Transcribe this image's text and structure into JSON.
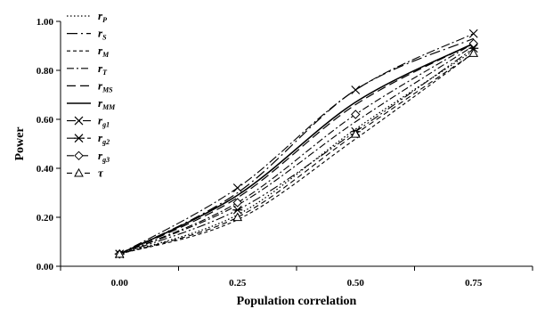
{
  "chart_data": {
    "type": "line",
    "title": "",
    "xlabel": "Population correlation",
    "ylabel": "Power",
    "x": [
      0.0,
      0.25,
      0.5,
      0.75
    ],
    "x_tick_labels": [
      "0.00",
      "0.25",
      "0.50",
      "0.75"
    ],
    "xlim": [
      -0.125,
      0.875
    ],
    "ylim": [
      0,
      1
    ],
    "y_ticks": [
      0,
      0.2,
      0.4,
      0.6,
      0.8,
      1.0
    ],
    "y_tick_labels": [
      "0.00",
      "0.20",
      "0.40",
      "0.60",
      "0.80",
      "1.00"
    ],
    "grid": false,
    "legend_position": "top-left",
    "series": [
      {
        "name": "r",
        "sub": "P",
        "values": [
          0.05,
          0.21,
          0.56,
          0.88
        ],
        "dash": "1.5,2.5",
        "width": 1.3,
        "marker": "none"
      },
      {
        "name": "r",
        "sub": "S",
        "values": [
          0.05,
          0.3,
          0.72,
          0.93
        ],
        "dash": "12,4,2,4",
        "width": 1.2,
        "marker": "none"
      },
      {
        "name": "r",
        "sub": "M",
        "values": [
          0.05,
          0.19,
          0.52,
          0.87
        ],
        "dash": "4,3",
        "width": 1.1,
        "marker": "none"
      },
      {
        "name": "r",
        "sub": "T",
        "values": [
          0.05,
          0.25,
          0.59,
          0.9
        ],
        "dash": "8,3,2,3",
        "width": 1.1,
        "marker": "none"
      },
      {
        "name": "r",
        "sub": "MS",
        "values": [
          0.05,
          0.28,
          0.66,
          0.91
        ],
        "dash": "10,5",
        "width": 1.2,
        "marker": "none"
      },
      {
        "name": "r",
        "sub": "MM",
        "values": [
          0.05,
          0.29,
          0.67,
          0.91
        ],
        "dash": "",
        "width": 1.6,
        "marker": "none"
      },
      {
        "name": "r",
        "sub": "g1",
        "values": [
          0.05,
          0.32,
          0.72,
          0.95
        ],
        "dash": "10,3,2,3",
        "width": 1.1,
        "marker": "x"
      },
      {
        "name": "r",
        "sub": "g2",
        "values": [
          0.05,
          0.23,
          0.55,
          0.89
        ],
        "dash": "10,3,2,3,2,3",
        "width": 1.1,
        "marker": "star"
      },
      {
        "name": "r",
        "sub": "g3",
        "values": [
          0.05,
          0.26,
          0.62,
          0.91
        ],
        "dash": "8,3,2,3",
        "width": 1.1,
        "marker": "diamond"
      },
      {
        "name": "τ",
        "sub": "",
        "values": [
          0.05,
          0.2,
          0.54,
          0.87
        ],
        "dash": "6,4",
        "width": 1.1,
        "marker": "triangle"
      }
    ]
  }
}
